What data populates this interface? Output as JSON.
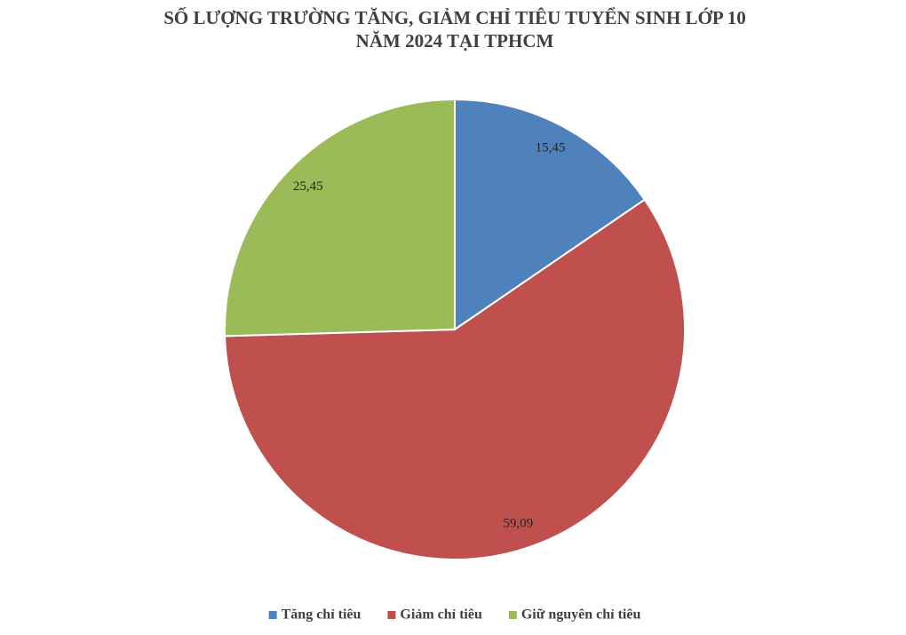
{
  "chart_data": {
    "type": "pie",
    "title": [
      "SỐ LƯỢNG TRƯỜNG TĂNG, GIẢM CHỈ TIÊU TUYỂN SINH LỚP 10",
      "NĂM 2024 TẠI TPHCM"
    ],
    "categories": [
      "Tăng chỉ tiêu",
      "Giảm chỉ tiêu",
      "Giữ nguyên chỉ tiêu"
    ],
    "values": [
      15.45,
      59.09,
      25.45
    ],
    "value_labels": [
      "15,45",
      "59,09",
      "25,45"
    ],
    "colors": [
      "#4f81bd",
      "#c0504d",
      "#9bbb59"
    ],
    "legend": "bottom"
  }
}
